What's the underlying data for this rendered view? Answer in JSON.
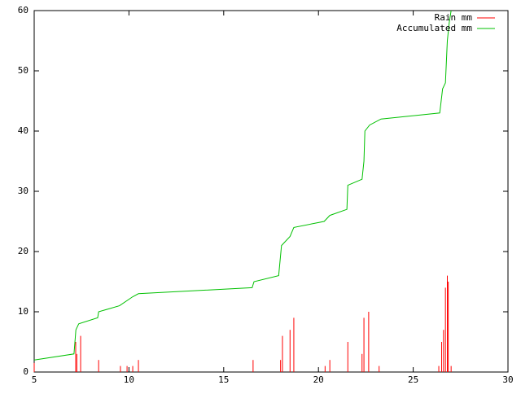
{
  "chart_data": {
    "type": "line",
    "xlim": [
      5,
      30
    ],
    "xticks": [
      5,
      10,
      15,
      20,
      25,
      30
    ],
    "ylim": [
      0,
      60
    ],
    "yticks": [
      0,
      10,
      20,
      30,
      40,
      50,
      60
    ],
    "grid": false,
    "legend": "top-right",
    "series": [
      {
        "name": "Rain mm",
        "color": "#ff0000",
        "style": "impulses",
        "x": [
          5.0,
          7.19,
          7.25,
          7.45,
          8.4,
          9.55,
          9.9,
          10.2,
          10.5,
          16.55,
          18.0,
          18.1,
          18.5,
          18.7,
          20.35,
          20.6,
          21.55,
          22.3,
          22.4,
          22.65,
          23.2,
          26.35,
          26.5,
          26.6,
          26.7,
          26.8,
          26.85,
          27.0
        ],
        "values": [
          1.5,
          5,
          3,
          6,
          2,
          1,
          1,
          1,
          2,
          2,
          2,
          6,
          7,
          9,
          1,
          2,
          5,
          3,
          9,
          10,
          1,
          1,
          5,
          7,
          14,
          16,
          15,
          1
        ]
      },
      {
        "name": "Accumulated mm",
        "color": "#00c000",
        "style": "lines",
        "x": [
          5.0,
          7.1,
          7.2,
          7.35,
          8.35,
          8.4,
          9.5,
          10.2,
          10.5,
          16.5,
          16.6,
          17.9,
          18.05,
          18.5,
          18.7,
          20.3,
          20.6,
          21.5,
          21.55,
          22.3,
          22.4,
          22.45,
          22.7,
          23.3,
          26.4,
          26.55,
          26.7,
          26.8,
          26.9,
          27.0
        ],
        "values": [
          2,
          3,
          7,
          8,
          9,
          10,
          11,
          12.5,
          13,
          14,
          15,
          16,
          21,
          22.5,
          24,
          25,
          26,
          27,
          31,
          32,
          35,
          40,
          41,
          42,
          43,
          47,
          48,
          55,
          58,
          60
        ]
      }
    ]
  }
}
